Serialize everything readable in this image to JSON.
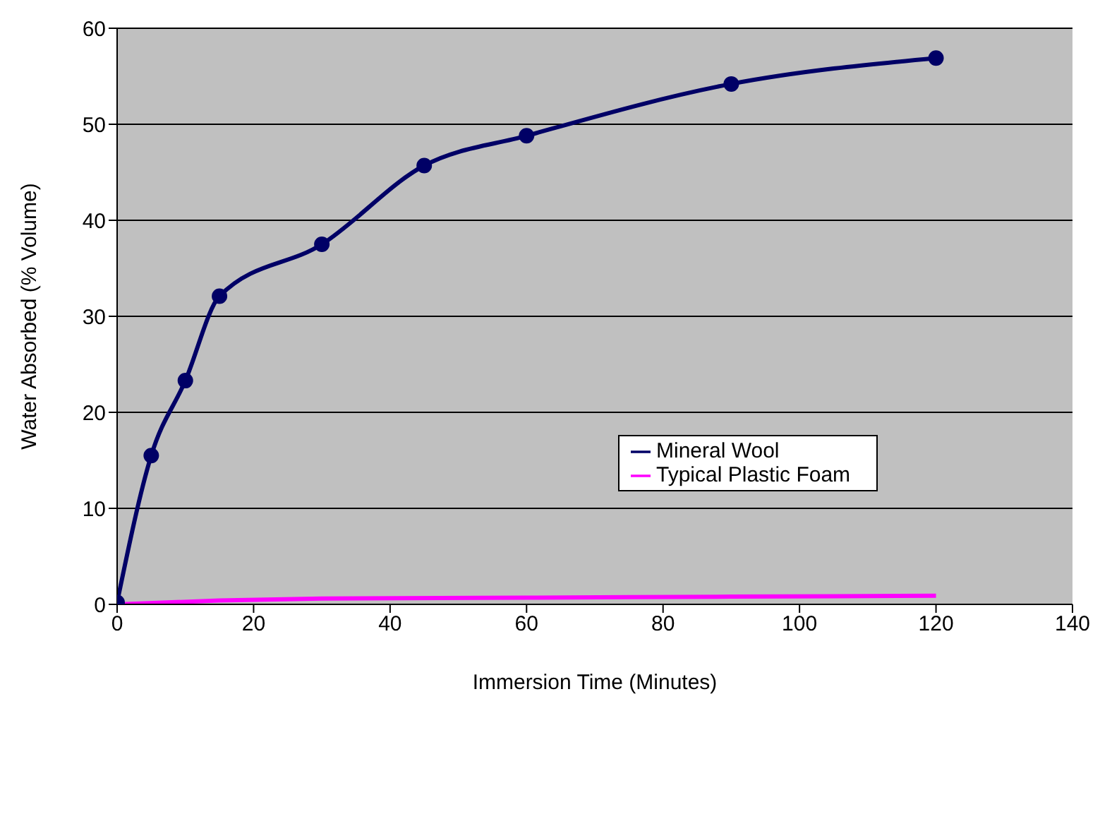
{
  "chart_data": {
    "type": "line",
    "xlabel": "Immersion Time (Minutes)",
    "ylabel": "Water Absorbed (% Volume)",
    "xlim": [
      0,
      140
    ],
    "xticks": [
      0,
      20,
      40,
      60,
      80,
      100,
      120,
      140
    ],
    "ylim": [
      0,
      60
    ],
    "yticks": [
      0,
      10,
      20,
      30,
      40,
      50,
      60
    ],
    "grid": "y",
    "legend": "right",
    "series": [
      {
        "name": "Mineral Wool",
        "color": "#000066",
        "marker": "circle",
        "x": [
          0,
          5,
          10,
          15,
          30,
          45,
          60,
          90,
          120
        ],
        "values": [
          0.2,
          15.5,
          23.3,
          32.1,
          37.5,
          45.7,
          48.8,
          54.2,
          56.9
        ]
      },
      {
        "name": "Typical Plastic Foam",
        "color": "#ff00ff",
        "marker": "none",
        "x": [
          0,
          15,
          30,
          60,
          90,
          120
        ],
        "values": [
          0,
          0.4,
          0.6,
          0.7,
          0.8,
          0.9
        ]
      }
    ]
  }
}
